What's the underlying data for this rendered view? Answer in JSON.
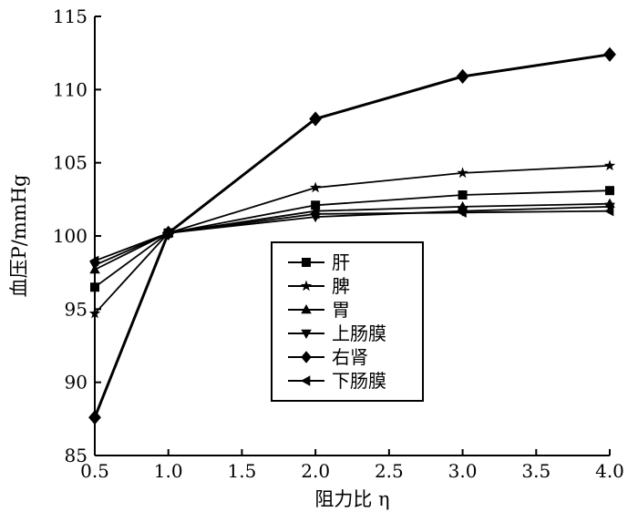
{
  "chart_data": {
    "type": "line",
    "xlabel": "阻力比 η",
    "ylabel": "血压P/mmHg",
    "xlim": [
      0.5,
      4.0
    ],
    "ylim": [
      85,
      115
    ],
    "xticks": [
      "0.5",
      "1.0",
      "1.5",
      "2.0",
      "2.5",
      "3.0",
      "3.5",
      "4.0"
    ],
    "yticks": [
      "85",
      "90",
      "95",
      "100",
      "105",
      "110",
      "115"
    ],
    "x": [
      0.5,
      1.0,
      2.0,
      3.0,
      4.0
    ],
    "legend_position": "center",
    "series": [
      {
        "name": "肝",
        "marker": "square",
        "values": [
          96.5,
          100.2,
          102.1,
          102.8,
          103.1
        ]
      },
      {
        "name": "脾",
        "marker": "star",
        "values": [
          94.7,
          100.2,
          103.3,
          104.3,
          104.8
        ]
      },
      {
        "name": "胃",
        "marker": "triangle-up",
        "values": [
          97.7,
          100.2,
          101.7,
          102.0,
          102.2
        ]
      },
      {
        "name": "上肠膜",
        "marker": "triangle-down",
        "values": [
          98.0,
          100.2,
          101.3,
          101.7,
          102.0
        ]
      },
      {
        "name": "右肾",
        "marker": "diamond",
        "values": [
          87.6,
          100.2,
          108.0,
          110.9,
          112.4
        ]
      },
      {
        "name": "下肠膜",
        "marker": "triangle-left",
        "values": [
          98.3,
          100.2,
          101.5,
          101.6,
          101.7
        ]
      }
    ]
  }
}
